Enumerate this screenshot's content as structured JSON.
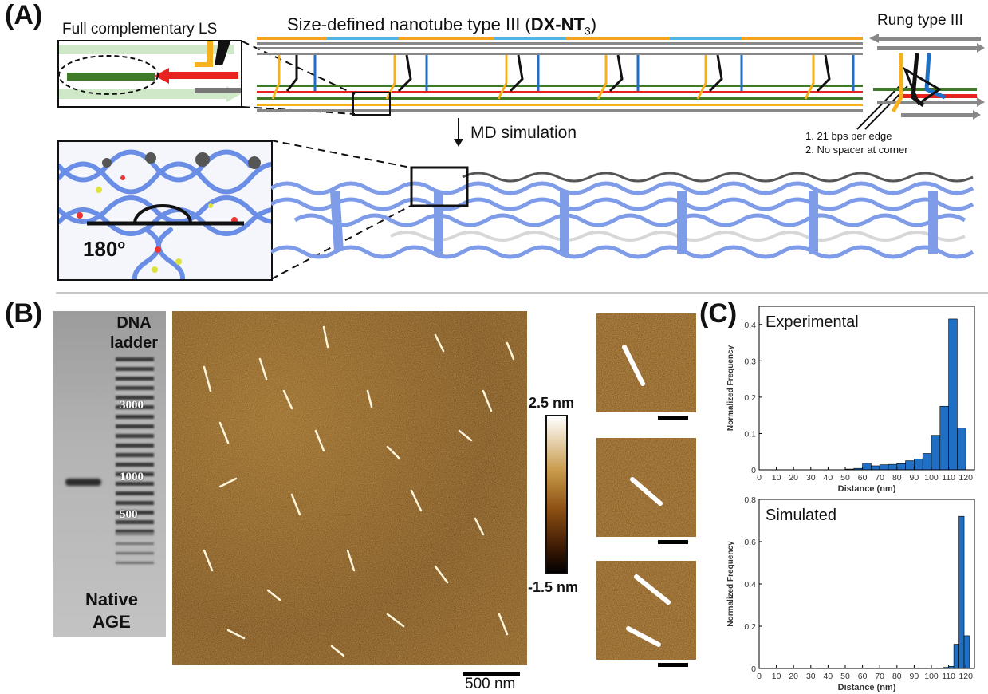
{
  "panels": {
    "a": "(A)",
    "b": "(B)",
    "c": "(C)"
  },
  "panel_a": {
    "title_main": "Size-defined nanotube type III (",
    "title_bold": "DX-NT",
    "title_sub": "3",
    "title_end": ")",
    "inset_left_label": "Full complementary LS",
    "inset_right_label": "Rung type III",
    "md_label": "MD simulation",
    "notes": [
      "1. 21 bps per edge",
      "2. No spacer at corner"
    ],
    "angle_label": "180",
    "angle_sup": "o"
  },
  "panel_b": {
    "ladder_label": [
      "DNA",
      "ladder"
    ],
    "ladder_marks": [
      "3000",
      "1000",
      "500"
    ],
    "gel_label": [
      "Native",
      "AGE"
    ],
    "colorbar_top": "2.5 nm",
    "colorbar_bottom": "-1.5 nm",
    "scale_label": "500 nm"
  },
  "chart_data": [
    {
      "type": "bar",
      "title": "Experimental",
      "xlabel": "Distance (nm)",
      "ylabel": "Normalized Frequency",
      "xlim": [
        0,
        125
      ],
      "ylim": [
        0,
        0.45
      ],
      "xticks": [
        0,
        10,
        20,
        30,
        40,
        50,
        60,
        70,
        80,
        90,
        100,
        110,
        120
      ],
      "yticks": [
        0,
        0.1,
        0.2,
        0.3,
        0.4
      ],
      "bin_width": 5,
      "x": [
        50,
        55,
        60,
        65,
        70,
        75,
        80,
        85,
        90,
        95,
        100,
        105,
        110,
        115
      ],
      "values": [
        0.002,
        0.004,
        0.018,
        0.011,
        0.014,
        0.015,
        0.017,
        0.025,
        0.03,
        0.045,
        0.095,
        0.175,
        0.415,
        0.115
      ],
      "color": "#1f6fc5"
    },
    {
      "type": "bar",
      "title": "Simulated",
      "xlabel": "Distance (nm)",
      "ylabel": "Normalized Frequency",
      "xlim": [
        0,
        125
      ],
      "ylim": [
        0,
        0.8
      ],
      "xticks": [
        0,
        10,
        20,
        30,
        40,
        50,
        60,
        70,
        80,
        90,
        100,
        110,
        120
      ],
      "yticks": [
        0,
        0.2,
        0.4,
        0.6,
        0.8
      ],
      "bin_width": 3,
      "x": [
        107,
        110,
        113,
        116,
        119
      ],
      "values": [
        0.005,
        0.01,
        0.115,
        0.72,
        0.155
      ],
      "color": "#1f6fc5"
    }
  ]
}
